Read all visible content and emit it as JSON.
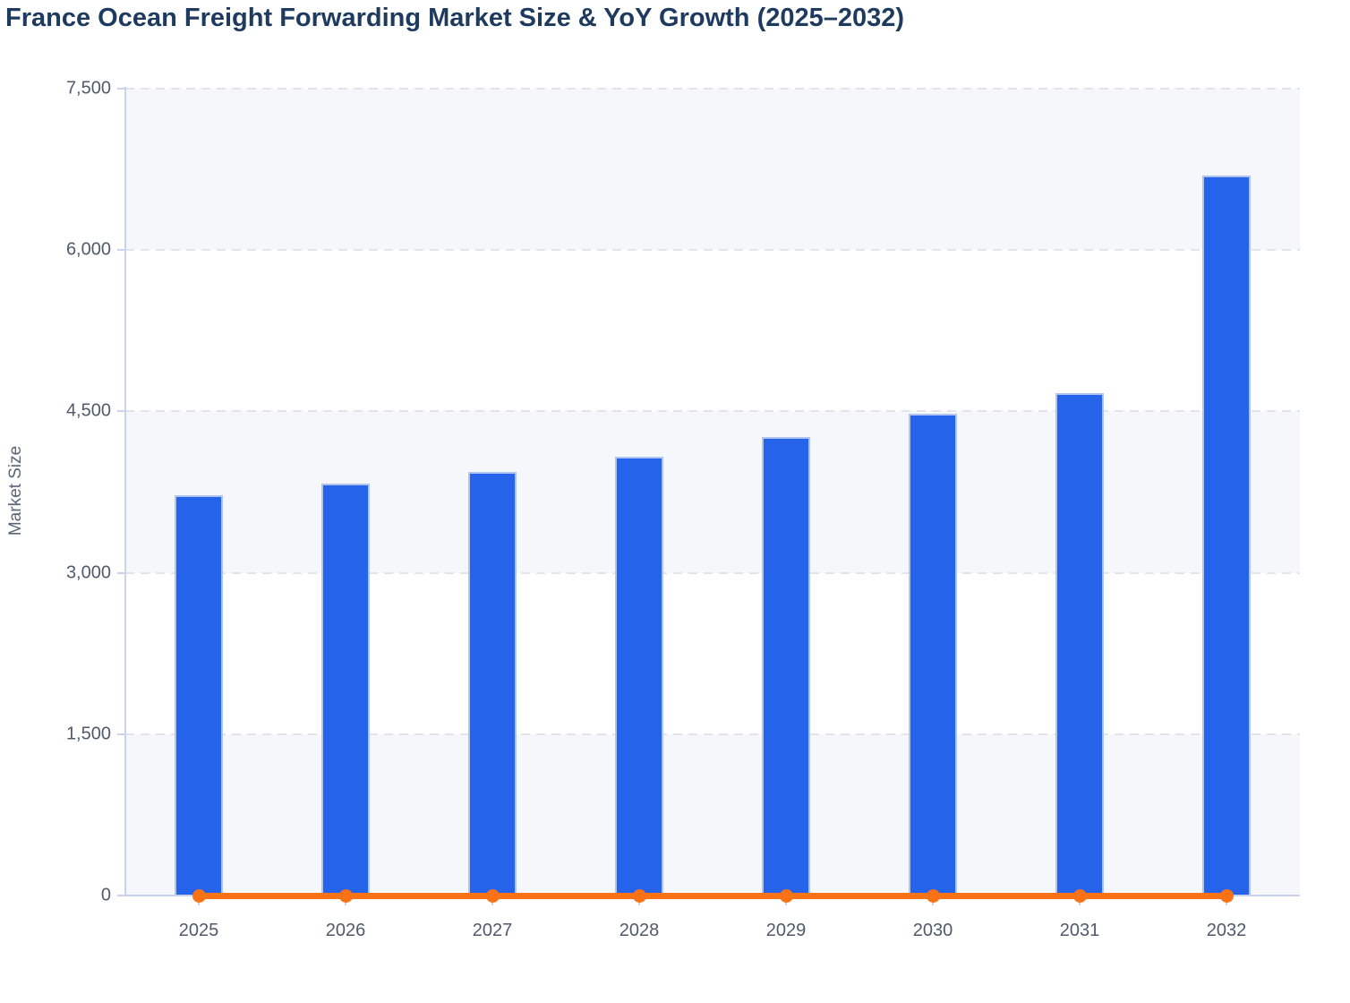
{
  "chart_data": {
    "type": "bar",
    "title": "France Ocean Freight Forwarding Market Size & YoY Growth (2025–2032)",
    "xlabel": "",
    "ylabel": "Market Size",
    "categories": [
      "2025",
      "2026",
      "2027",
      "2028",
      "2029",
      "2030",
      "2031",
      "2032"
    ],
    "series": [
      {
        "name": "Market Size",
        "type": "bar",
        "color": "#2563eb",
        "values": [
          3720,
          3830,
          3940,
          4080,
          4260,
          4475,
          4670,
          6690
        ]
      },
      {
        "name": "YoY Growth",
        "type": "line",
        "color": "#f97316",
        "values": [
          0,
          0,
          0,
          0,
          0,
          0,
          0,
          0
        ]
      }
    ],
    "ylim": [
      0,
      7500
    ],
    "yticks": [
      0,
      1500,
      3000,
      4500,
      6000,
      7500
    ],
    "ytick_labels": [
      "0",
      "1,500",
      "3,000",
      "4,500",
      "6,000",
      "7,500"
    ],
    "grid": "horizontal-dashed",
    "legend": "none"
  },
  "theme": {
    "bar_fill": "#2563eb",
    "bar_stroke": "#b0c4f4",
    "line_color": "#f97316",
    "axis_color": "#c9d2ee",
    "grid_color": "#e2e4e9",
    "band_fill": "#f6f7fa",
    "band_fill_alt": "#ffffff",
    "title_color": "#1e3a5f",
    "tick_label_color": "#4f5a6a",
    "axis_title_color": "#5a6575",
    "background": "#ffffff"
  }
}
